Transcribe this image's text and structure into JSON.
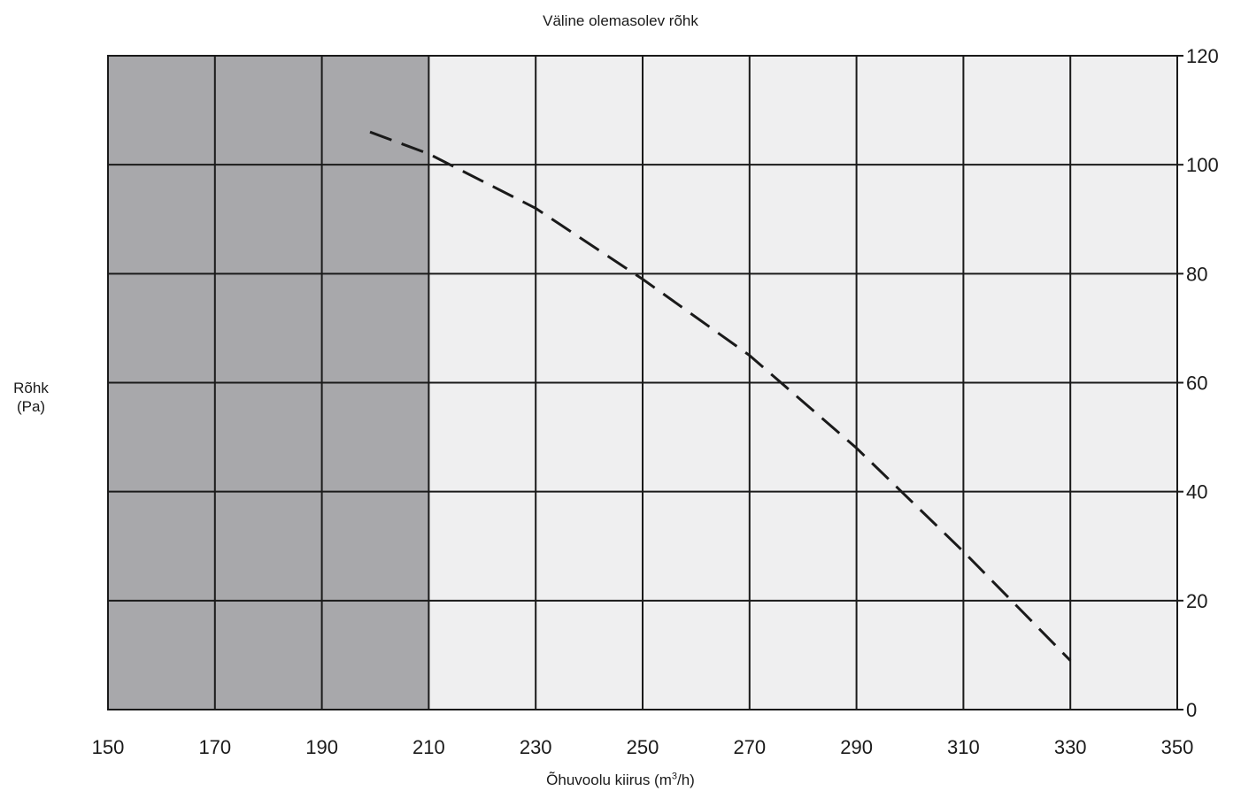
{
  "chart_data": {
    "type": "line",
    "title": "Väline olemasolev rõhk",
    "ylabel": {
      "line1": "Rõhk",
      "line2": "(Pa)"
    },
    "xlabel": {
      "prefix": "Õhuvoolu kiirus (m",
      "sup": "3",
      "suffix": "/h)"
    },
    "xlim": [
      150,
      350
    ],
    "ylim": [
      0,
      120
    ],
    "x_ticks": [
      150,
      170,
      190,
      210,
      230,
      250,
      270,
      290,
      310,
      330,
      350
    ],
    "y_ticks": [
      0,
      20,
      40,
      60,
      80,
      100,
      120
    ],
    "y_axis_side": "right",
    "grid": true,
    "shaded_region": {
      "x_from": 150,
      "x_to": 210,
      "color": "#a8a8ab"
    },
    "plot_background": "#efeff0",
    "series": [
      {
        "line_style": "dashed",
        "color": "#1a1a1a",
        "points": [
          {
            "x": 199,
            "y": 106
          },
          {
            "x": 210,
            "y": 102
          },
          {
            "x": 230,
            "y": 92
          },
          {
            "x": 250,
            "y": 79
          },
          {
            "x": 270,
            "y": 65
          },
          {
            "x": 290,
            "y": 48
          },
          {
            "x": 310,
            "y": 29
          },
          {
            "x": 320,
            "y": 19
          },
          {
            "x": 330,
            "y": 9
          }
        ]
      }
    ]
  }
}
